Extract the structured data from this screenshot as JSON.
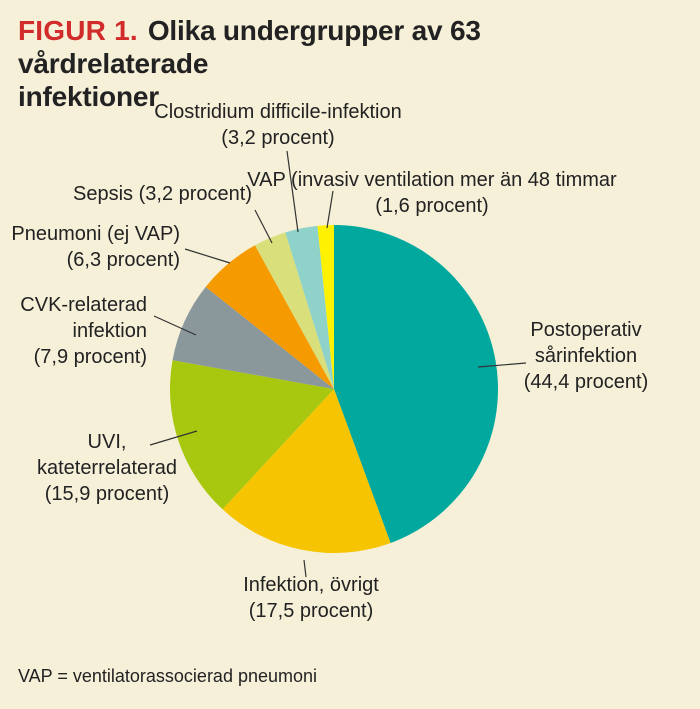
{
  "header": {
    "figure_label": "FIGUR 1.",
    "title_line1": "Olika undergrupper av 63 vårdrelaterade",
    "title_line2": "infektioner"
  },
  "footnote": "VAP = ventilatorassocierad pneumoni",
  "chart_data": {
    "type": "pie",
    "title": "Olika undergrupper av 63 vårdrelaterade infektioner",
    "start_angle_deg": 0,
    "direction": "clockwise",
    "slices": [
      {
        "name": "Postoperativ sårinfektion",
        "value": 44.4,
        "color": "#00a89d",
        "label_lines": [
          "Postoperativ",
          "sårinfektion",
          "(44,4 procent)"
        ],
        "label_anchor": "middle"
      },
      {
        "name": "Infektion, övrigt",
        "value": 17.5,
        "color": "#f6c400",
        "label_lines": [
          "Infektion, övrigt",
          "(17,5 procent)"
        ],
        "label_anchor": "middle"
      },
      {
        "name": "UVI, kateterrelaterad",
        "value": 15.9,
        "color": "#a7c80f",
        "label_lines": [
          "UVI,",
          "kateterrelaterad",
          "(15,9 procent)"
        ],
        "label_anchor": "middle"
      },
      {
        "name": "CVK-relaterad infektion",
        "value": 7.9,
        "color": "#8b989b",
        "label_lines": [
          "CVK-relaterad",
          "infektion",
          "(7,9 procent)"
        ],
        "label_anchor": "end"
      },
      {
        "name": "Pneumoni (ej VAP)",
        "value": 6.3,
        "color": "#f59a00",
        "label_lines": [
          "Pneumoni (ej VAP)",
          "(6,3 procent)"
        ],
        "label_anchor": "end"
      },
      {
        "name": "Sepsis",
        "value": 3.2,
        "color": "#d9df7b",
        "label_lines": [
          "Sepsis (3,2 procent)"
        ],
        "label_anchor": "end"
      },
      {
        "name": "Clostridium difficile-infektion",
        "value": 3.2,
        "color": "#8fd2c9",
        "label_lines": [
          "Clostridium difficile-infektion",
          "(3,2 procent)"
        ],
        "label_anchor": "middle"
      },
      {
        "name": "VAP (invasiv ventilation mer än 48 timmar",
        "value": 1.6,
        "color": "#fff200",
        "label_lines": [
          "VAP (invasiv ventilation mer än 48 timmar",
          "(1,6 procent)"
        ],
        "label_anchor": "middle"
      }
    ]
  }
}
